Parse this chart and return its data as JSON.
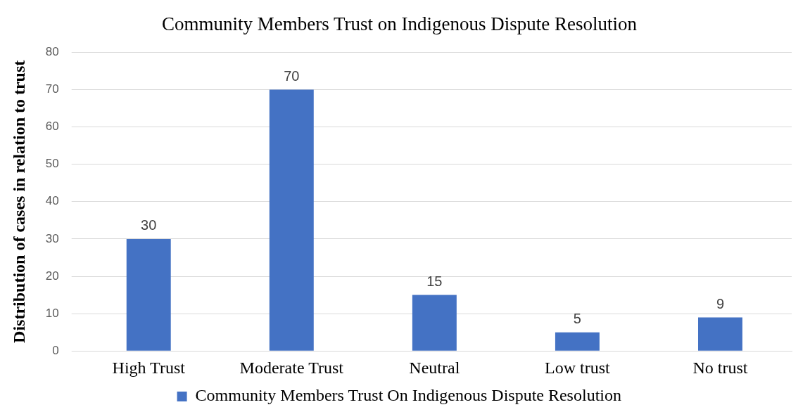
{
  "chart_data": {
    "type": "bar",
    "title": "Community Members Trust on Indigenous Dispute Resolution",
    "ylabel": "Distribution of cases in relation to trust",
    "categories": [
      "High Trust",
      "Moderate Trust",
      "Neutral",
      "Low trust",
      "No trust"
    ],
    "series": [
      {
        "name": "Community Members Trust On Indigenous Dispute Resolution",
        "color": "#4472c4",
        "values": [
          30,
          70,
          15,
          5,
          9
        ]
      }
    ],
    "ylim": [
      0,
      80
    ],
    "yticks": [
      0,
      10,
      20,
      30,
      40,
      50,
      60,
      70,
      80
    ],
    "grid": "y",
    "legend": "bottom",
    "data_labels": true
  }
}
